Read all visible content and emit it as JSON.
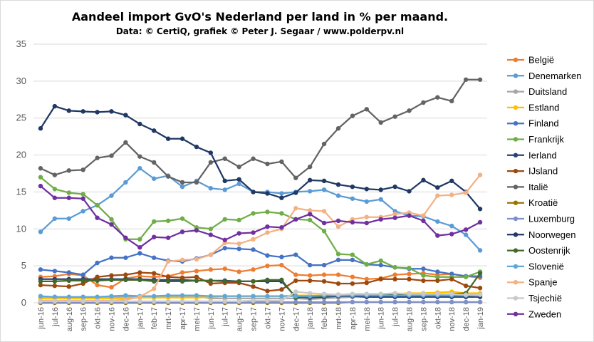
{
  "chart_data": {
    "type": "line",
    "title": "Aandeel import GvO's Nederland per land in % per maand.",
    "subtitle": "Data: © CertiQ, grafiek © Peter J. Segaar / www.polderpv.nl",
    "xlabel": "",
    "ylabel": "",
    "ylim": [
      0,
      35
    ],
    "yticks": [
      0,
      5,
      10,
      15,
      20,
      25,
      30,
      35
    ],
    "grid": true,
    "legend_position": "right",
    "categories": [
      "jun-16",
      "jul-16",
      "aug-16",
      "sep-16",
      "okt-16",
      "nov-16",
      "dec-16",
      "jan-17",
      "feb-17",
      "mrt-17",
      "apr-17",
      "mei-17",
      "jun-17",
      "jul-17",
      "aug-17",
      "sep-17",
      "okt-17",
      "nov-17",
      "dec-17",
      "jan-18",
      "feb-18",
      "mrt-18",
      "apr-18",
      "mei-18",
      "jun-18",
      "jul-18",
      "aug-18",
      "sep-18",
      "okt-18",
      "nov-18",
      "dec-18",
      "jan-19"
    ],
    "series": [
      {
        "name": "België",
        "color": "#ED7D31",
        "values": [
          3.5,
          3.6,
          3.9,
          3.7,
          2.4,
          2.1,
          3.3,
          3.6,
          3.5,
          3.6,
          4.1,
          4.3,
          4.5,
          4.6,
          4.2,
          4.5,
          5.0,
          5.1,
          3.8,
          3.7,
          3.8,
          3.8,
          3.5,
          3.2,
          3.3,
          3.8,
          3.9,
          4.0,
          3.8,
          3.9,
          3.6,
          3.4
        ]
      },
      {
        "name": "Denemarken",
        "color": "#5B9BD5",
        "values": [
          9.6,
          11.4,
          11.4,
          12.4,
          13.2,
          14.5,
          16.3,
          18.2,
          16.8,
          17.2,
          15.7,
          16.5,
          15.5,
          15.3,
          16.1,
          15.0,
          15.0,
          14.8,
          15.0,
          15.1,
          15.3,
          14.5,
          14.1,
          13.7,
          14.0,
          12.4,
          11.8,
          11.7,
          11.0,
          10.4,
          9.2,
          7.1
        ]
      },
      {
        "name": "Duitsland",
        "color": "#A5A5A5",
        "values": [
          0.8,
          0.8,
          0.8,
          0.8,
          0.8,
          0.8,
          0.8,
          0.8,
          0.8,
          0.9,
          0.9,
          0.9,
          0.6,
          0.6,
          0.6,
          0.6,
          0.6,
          0.6,
          0.6,
          0.5,
          0.6,
          0.7,
          0.8,
          0.8,
          0.8,
          0.9,
          0.9,
          0.9,
          0.9,
          1.0,
          1.0,
          1.1
        ]
      },
      {
        "name": "Estland",
        "color": "#FFC000",
        "values": [
          0.6,
          0.6,
          0.6,
          0.6,
          0.6,
          0.6,
          0.6,
          0.7,
          0.7,
          0.7,
          0.7,
          0.7,
          0.8,
          0.9,
          0.9,
          0.9,
          0.9,
          0.9,
          1.0,
          1.0,
          1.0,
          1.1,
          1.1,
          1.1,
          1.2,
          1.2,
          1.3,
          1.3,
          1.4,
          1.5,
          1.3,
          1.3
        ]
      },
      {
        "name": "Finland",
        "color": "#4472C4",
        "values": [
          4.5,
          4.3,
          4.1,
          3.8,
          5.4,
          6.1,
          6.1,
          6.7,
          6.1,
          5.7,
          5.6,
          6.0,
          6.5,
          7.4,
          7.3,
          7.2,
          6.4,
          6.2,
          6.5,
          5.1,
          5.1,
          5.8,
          5.8,
          5.2,
          5.1,
          4.8,
          4.6,
          4.6,
          4.2,
          3.9,
          3.6,
          3.6
        ]
      },
      {
        "name": "Frankrijk",
        "color": "#70AD47",
        "values": [
          17.0,
          15.4,
          14.9,
          14.7,
          13.2,
          11.3,
          8.6,
          8.6,
          11.0,
          11.1,
          11.4,
          10.2,
          10.0,
          11.3,
          11.2,
          12.1,
          12.3,
          12.1,
          11.3,
          11.2,
          9.7,
          6.6,
          6.5,
          5.2,
          5.7,
          4.8,
          4.7,
          3.7,
          3.5,
          3.5,
          3.5,
          4.2
        ]
      },
      {
        "name": "Ierland",
        "color": "#264478",
        "values": [
          3.2,
          3.2,
          3.2,
          3.2,
          3.2,
          3.2,
          3.2,
          3.2,
          3.1,
          3.1,
          3.1,
          3.0,
          3.0,
          3.0,
          2.9,
          2.9,
          2.9,
          2.9,
          0.8,
          0.7,
          0.8,
          0.9,
          0.9,
          0.8,
          0.8,
          0.8,
          0.8,
          0.8,
          0.8,
          0.8,
          0.8,
          0.8
        ]
      },
      {
        "name": "IJsland",
        "color": "#9E480E",
        "values": [
          2.4,
          2.3,
          2.2,
          2.6,
          3.5,
          3.7,
          3.8,
          4.1,
          4.0,
          3.5,
          3.4,
          3.5,
          2.6,
          2.7,
          2.7,
          2.2,
          1.6,
          1.8,
          3.0,
          3.0,
          2.9,
          2.6,
          2.6,
          2.7,
          3.2,
          3.2,
          3.2,
          3.0,
          3.0,
          3.2,
          2.3,
          2.0
        ]
      },
      {
        "name": "Italië",
        "color": "#636363",
        "values": [
          18.2,
          17.3,
          17.9,
          18.0,
          19.6,
          19.9,
          21.7,
          19.8,
          19.0,
          17.1,
          16.3,
          16.3,
          19.0,
          19.5,
          18.4,
          19.5,
          18.8,
          19.1,
          16.9,
          18.4,
          21.5,
          23.6,
          25.3,
          26.2,
          24.4,
          25.2,
          26.0,
          27.1,
          27.8,
          27.3,
          30.2,
          30.2
        ]
      },
      {
        "name": "Kroatië",
        "color": "#997300",
        "values": [
          0.0,
          0.0,
          0.0,
          0.0,
          0.0,
          0.0,
          0.0,
          0.0,
          0.0,
          0.0,
          0.0,
          0.0,
          0.0,
          0.0,
          0.0,
          0.0,
          0.0,
          0.0,
          0.0,
          0.0,
          0.0,
          0.0,
          0.1,
          0.1,
          0.1,
          0.1,
          0.1,
          0.1,
          0.1,
          0.1,
          0.1,
          0.1
        ]
      },
      {
        "name": "Luxemburg",
        "color": "#7F8FC9",
        "values": [
          0.1,
          0.1,
          0.1,
          0.1,
          0.1,
          0.1,
          0.1,
          0.1,
          0.1,
          0.1,
          0.1,
          0.1,
          0.1,
          0.1,
          0.1,
          0.1,
          0.1,
          0.1,
          0.1,
          0.1,
          0.1,
          0.1,
          0.1,
          0.1,
          0.1,
          0.1,
          0.1,
          0.1,
          0.1,
          0.1,
          0.1,
          0.1
        ]
      },
      {
        "name": "Noorwegen",
        "color": "#203864",
        "values": [
          23.6,
          26.6,
          26.0,
          25.9,
          25.8,
          25.9,
          25.4,
          24.2,
          23.3,
          22.2,
          22.2,
          21.1,
          20.3,
          16.5,
          16.7,
          15.0,
          14.8,
          14.2,
          14.9,
          16.6,
          16.5,
          16.0,
          15.7,
          15.4,
          15.3,
          15.7,
          15.1,
          16.6,
          15.6,
          16.5,
          15.0,
          12.7
        ]
      },
      {
        "name": "Oostenrijk",
        "color": "#43682B",
        "values": [
          2.9,
          2.9,
          3.0,
          3.0,
          3.0,
          3.1,
          3.1,
          3.1,
          2.9,
          2.9,
          2.9,
          3.0,
          3.0,
          2.9,
          2.9,
          2.9,
          3.1,
          3.1,
          0.7,
          0.8,
          0.9,
          1.1,
          1.1,
          1.1,
          1.1,
          1.1,
          1.1,
          1.1,
          1.1,
          1.2,
          1.3,
          4.0
        ]
      },
      {
        "name": "Slovenië",
        "color": "#5EA8D9",
        "values": [
          0.9,
          0.8,
          0.8,
          0.8,
          0.8,
          0.9,
          1.0,
          0.9,
          0.9,
          1.0,
          1.0,
          1.0,
          0.9,
          0.9,
          0.9,
          0.9,
          0.9,
          0.9,
          0.9,
          0.9,
          1.0,
          1.0,
          1.0,
          1.0,
          1.0,
          1.0,
          1.0,
          1.0,
          1.0,
          1.0,
          1.0,
          1.1
        ]
      },
      {
        "name": "Spanje",
        "color": "#F4B183",
        "values": [
          0.3,
          0.3,
          0.3,
          0.3,
          0.3,
          0.3,
          0.4,
          0.8,
          1.9,
          5.6,
          5.8,
          5.9,
          6.5,
          8.1,
          8.0,
          8.6,
          9.5,
          10.0,
          12.8,
          12.5,
          12.4,
          10.3,
          11.3,
          11.6,
          11.6,
          12.0,
          12.2,
          11.8,
          14.5,
          14.6,
          14.9,
          17.3
        ]
      },
      {
        "name": "Tsjechië",
        "color": "#C9C9C9",
        "values": [
          0.2,
          0.2,
          0.2,
          0.2,
          0.2,
          0.2,
          0.2,
          0.2,
          0.2,
          0.2,
          0.2,
          0.2,
          0.2,
          0.2,
          0.2,
          0.3,
          0.3,
          0.3,
          1.5,
          1.3,
          1.2,
          1.1,
          1.2,
          1.2,
          1.2,
          1.3,
          1.2,
          1.2,
          1.2,
          1.2,
          1.1,
          1.1
        ]
      },
      {
        "name": "Zweden",
        "color": "#7030A0",
        "values": [
          15.8,
          14.2,
          14.2,
          14.1,
          11.5,
          10.6,
          8.8,
          7.5,
          8.9,
          8.8,
          9.6,
          9.8,
          9.2,
          8.5,
          9.4,
          9.5,
          10.3,
          10.2,
          11.3,
          12.0,
          10.8,
          11.1,
          10.9,
          10.8,
          11.3,
          11.5,
          11.8,
          11.1,
          9.1,
          9.3,
          9.9,
          10.9
        ]
      }
    ]
  }
}
